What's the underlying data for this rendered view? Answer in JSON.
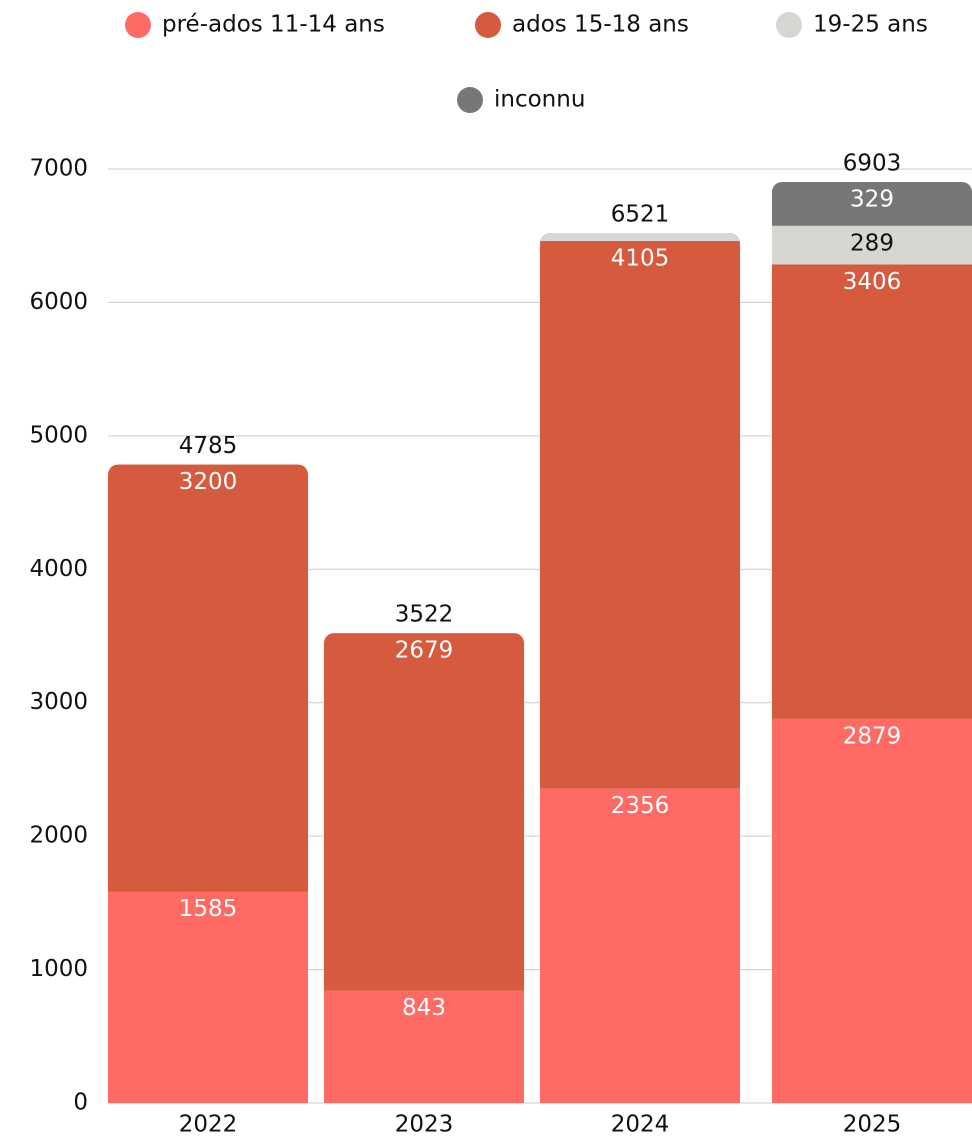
{
  "chart_data": {
    "type": "stacked_bar",
    "categories": [
      "2022",
      "2023",
      "2024",
      "2025"
    ],
    "series": [
      {
        "name": "pré-ados 11-14 ans",
        "color": "#ff6b64",
        "values": [
          1585,
          843,
          2356,
          2879
        ]
      },
      {
        "name": "ados 15-18 ans",
        "color": "#d55a3e",
        "values": [
          3200,
          2679,
          4105,
          3406
        ]
      },
      {
        "name": "19-25 ans",
        "color": "#d6d6d3",
        "values": [
          null,
          null,
          60,
          289
        ]
      },
      {
        "name": "inconnu",
        "color": "#777777",
        "values": [
          null,
          null,
          null,
          329
        ]
      }
    ],
    "totals": [
      4785,
      3522,
      6521,
      6903
    ],
    "ylim": [
      0,
      7000
    ],
    "yticks": [
      0,
      1000,
      2000,
      3000,
      4000,
      5000,
      6000,
      7000
    ],
    "grid": true
  }
}
